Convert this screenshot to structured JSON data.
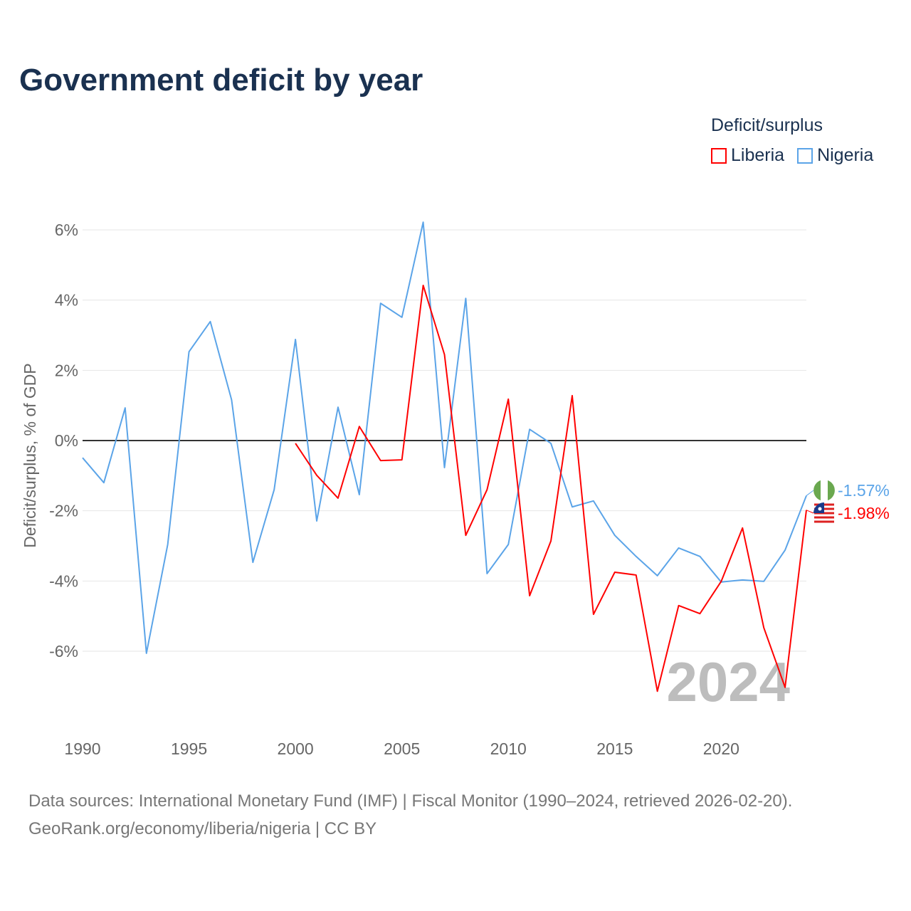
{
  "title": "Government deficit by year",
  "legend": {
    "title": "Deficit/surplus",
    "items": [
      {
        "name": "Liberia",
        "color": "#ff0000"
      },
      {
        "name": "Nigeria",
        "color": "#5ba4e8"
      }
    ]
  },
  "footer": {
    "line1": "Data sources: International Monetary Fund (IMF) | Fiscal Monitor (1990–2024, retrieved 2026-02-20).",
    "line2": "GeoRank.org/economy/liberia/nigeria | CC BY"
  },
  "year_watermark": "2024",
  "chart_data": {
    "type": "line",
    "title": "Government deficit by year",
    "xlabel": "",
    "ylabel": "Deficit/surplus, % of GDP",
    "xlim": [
      1990,
      2024
    ],
    "ylim": [
      -8.1,
      6.5
    ],
    "x_ticks": [
      1990,
      1995,
      2000,
      2005,
      2010,
      2015,
      2020
    ],
    "x_tick_labels": [
      "1990",
      "1995",
      "2000",
      "2005",
      "2010",
      "2015",
      "2020"
    ],
    "y_ticks": [
      6,
      4,
      2,
      0,
      -2,
      -4,
      -6
    ],
    "y_tick_labels": [
      "6%",
      "4%",
      "2%",
      "0%",
      "-2%",
      "-4%",
      "-6%"
    ],
    "grid": true,
    "legend_position": "top-right",
    "series": [
      {
        "name": "Nigeria",
        "color": "#5ba4e8",
        "end_label": "-1.57%",
        "x": [
          1990,
          1991,
          1992,
          1993,
          1994,
          1995,
          1996,
          1997,
          1998,
          1999,
          2000,
          2001,
          2002,
          2003,
          2004,
          2005,
          2006,
          2007,
          2008,
          2009,
          2010,
          2011,
          2012,
          2013,
          2014,
          2015,
          2016,
          2017,
          2018,
          2019,
          2020,
          2021,
          2022,
          2023,
          2024
        ],
        "values": [
          -0.49,
          -1.2,
          0.93,
          -6.06,
          -2.96,
          2.53,
          3.39,
          1.16,
          -3.47,
          -1.4,
          2.88,
          -2.29,
          0.95,
          -1.54,
          3.91,
          3.51,
          6.22,
          -0.77,
          4.05,
          -3.79,
          -2.96,
          0.32,
          -0.08,
          -1.89,
          -1.72,
          -2.7,
          -3.3,
          -3.85,
          -3.06,
          -3.3,
          -4.03,
          -3.97,
          -4.01,
          -3.12,
          -1.57
        ]
      },
      {
        "name": "Liberia",
        "color": "#ff0000",
        "end_label": "-1.98%",
        "x": [
          2000,
          2001,
          2002,
          2003,
          2004,
          2005,
          2006,
          2007,
          2008,
          2009,
          2010,
          2011,
          2012,
          2013,
          2014,
          2015,
          2016,
          2017,
          2018,
          2019,
          2020,
          2021,
          2022,
          2023,
          2024
        ],
        "values": [
          -0.08,
          -0.99,
          -1.64,
          0.4,
          -0.57,
          -0.55,
          4.42,
          2.45,
          -2.7,
          -1.4,
          1.18,
          -4.42,
          -2.86,
          1.28,
          -4.95,
          -3.75,
          -3.83,
          -7.14,
          -4.7,
          -4.93,
          -4.01,
          -2.49,
          -5.33,
          -7.03,
          -1.98
        ]
      }
    ]
  }
}
